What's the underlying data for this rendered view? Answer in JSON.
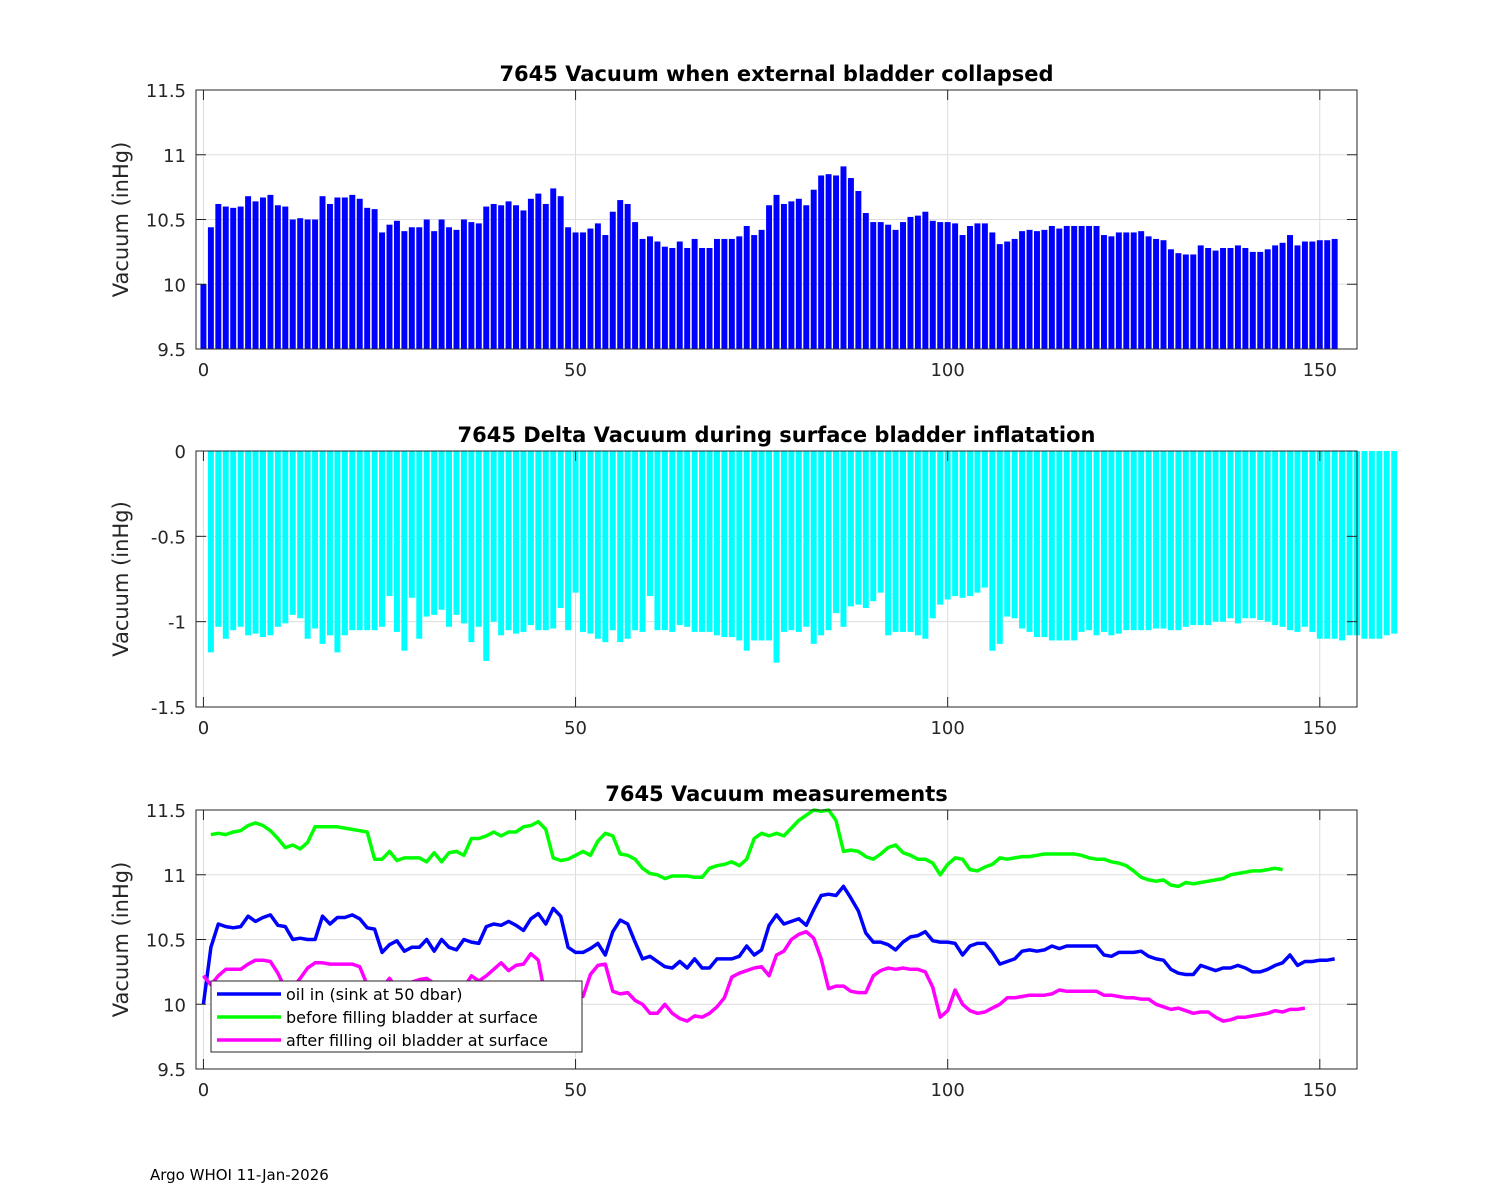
{
  "footer": "Argo WHOI 11-Jan-2026",
  "colors": {
    "bars1": "#0000ff",
    "bars2": "#00ffff",
    "oil_in": "#0000ff",
    "before": "#00ff00",
    "after": "#ff00ff",
    "grid": "#dddddd",
    "axis": "#262626"
  },
  "chart_data": [
    {
      "type": "bar",
      "title": "7645 Vacuum when external bladder collapsed",
      "ylabel": "Vacuum (inHg)",
      "xlabel": "",
      "xlim": [
        -1,
        155
      ],
      "ylim": [
        9.5,
        11.5
      ],
      "xticks": [
        "0",
        "50",
        "100",
        "150"
      ],
      "xtick_values": [
        0,
        50,
        100,
        150
      ],
      "yticks": [
        "9.5",
        "10",
        "10.5",
        "11",
        "11.5"
      ],
      "ytick_values": [
        9.5,
        10,
        10.5,
        11,
        11.5
      ],
      "grid": true,
      "x_start": 0,
      "values": [
        10.0,
        10.44,
        10.62,
        10.6,
        10.59,
        10.6,
        10.68,
        10.64,
        10.67,
        10.69,
        10.61,
        10.6,
        10.5,
        10.51,
        10.5,
        10.5,
        10.68,
        10.62,
        10.67,
        10.67,
        10.69,
        10.66,
        10.59,
        10.58,
        10.4,
        10.46,
        10.49,
        10.41,
        10.44,
        10.44,
        10.5,
        10.41,
        10.5,
        10.44,
        10.42,
        10.5,
        10.48,
        10.47,
        10.6,
        10.62,
        10.61,
        10.64,
        10.61,
        10.57,
        10.66,
        10.7,
        10.62,
        10.74,
        10.68,
        10.44,
        10.4,
        10.4,
        10.43,
        10.47,
        10.38,
        10.56,
        10.65,
        10.62,
        10.48,
        10.35,
        10.37,
        10.33,
        10.29,
        10.28,
        10.33,
        10.28,
        10.35,
        10.28,
        10.28,
        10.35,
        10.35,
        10.35,
        10.37,
        10.45,
        10.38,
        10.42,
        10.61,
        10.69,
        10.62,
        10.64,
        10.66,
        10.61,
        10.73,
        10.84,
        10.85,
        10.84,
        10.91,
        10.82,
        10.72,
        10.55,
        10.48,
        10.48,
        10.46,
        10.42,
        10.48,
        10.52,
        10.53,
        10.56,
        10.49,
        10.48,
        10.48,
        10.47,
        10.38,
        10.45,
        10.47,
        10.47,
        10.4,
        10.31,
        10.33,
        10.35,
        10.41,
        10.42,
        10.41,
        10.42,
        10.45,
        10.43,
        10.45,
        10.45,
        10.45,
        10.45,
        10.45,
        10.38,
        10.37,
        10.4,
        10.4,
        10.4,
        10.41,
        10.37,
        10.35,
        10.34,
        10.27,
        10.24,
        10.23,
        10.23,
        10.3,
        10.28,
        10.26,
        10.28,
        10.28,
        10.3,
        10.28,
        10.25,
        10.25,
        10.27,
        10.3,
        10.32,
        10.38,
        10.3,
        10.33,
        10.33,
        10.34,
        10.34,
        10.35
      ]
    },
    {
      "type": "bar",
      "title": "7645 Delta Vacuum during surface bladder inflatation",
      "ylabel": "Vacuum (inHg)",
      "xlabel": "",
      "xlim": [
        -1,
        155
      ],
      "ylim": [
        -1.5,
        0
      ],
      "xticks": [
        "0",
        "50",
        "100",
        "150"
      ],
      "xtick_values": [
        0,
        50,
        100,
        150
      ],
      "yticks": [
        "-1.5",
        "-1",
        "-0.5",
        "0"
      ],
      "ytick_values": [
        -1.5,
        -1,
        -0.5,
        0
      ],
      "grid": true,
      "x_start": 0,
      "values": [
        0,
        -1.18,
        -1.03,
        -1.1,
        -1.05,
        -1.03,
        -1.08,
        -1.07,
        -1.09,
        -1.08,
        -1.03,
        -1.01,
        -0.96,
        -0.98,
        -1.1,
        -1.04,
        -1.13,
        -1.08,
        -1.18,
        -1.08,
        -1.05,
        -1.05,
        -1.05,
        -1.05,
        -1.03,
        -0.85,
        -1.06,
        -1.17,
        -0.86,
        -1.1,
        -0.97,
        -0.96,
        -0.93,
        -1.03,
        -0.96,
        -1.01,
        -1.12,
        -1.03,
        -1.23,
        -1.0,
        -1.08,
        -1.05,
        -1.07,
        -1.06,
        -1.02,
        -1.05,
        -1.05,
        -1.04,
        -0.92,
        -1.05,
        -0.83,
        -1.06,
        -1.07,
        -1.1,
        -1.12,
        -1.05,
        -1.12,
        -1.1,
        -1.05,
        -1.06,
        -0.85,
        -1.05,
        -1.05,
        -1.06,
        -1.02,
        -1.03,
        -1.06,
        -1.06,
        -1.06,
        -1.08,
        -1.09,
        -1.09,
        -1.11,
        -1.17,
        -1.11,
        -1.11,
        -1.11,
        -1.24,
        -1.06,
        -1.05,
        -1.06,
        -1.03,
        -1.13,
        -1.08,
        -1.05,
        -0.95,
        -1.03,
        -0.91,
        -0.9,
        -0.92,
        -0.88,
        -0.83,
        -1.08,
        -1.06,
        -1.06,
        -1.06,
        -1.08,
        -1.1,
        -0.98,
        -0.9,
        -0.87,
        -0.85,
        -0.86,
        -0.85,
        -0.83,
        -0.8,
        -1.17,
        -1.13,
        -0.97,
        -0.98,
        -1.04,
        -1.06,
        -1.09,
        -1.09,
        -1.11,
        -1.11,
        -1.11,
        -1.11,
        -1.06,
        -1.05,
        -1.08,
        -1.06,
        -1.08,
        -1.07,
        -1.05,
        -1.05,
        -1.05,
        -1.05,
        -1.04,
        -1.04,
        -1.05,
        -1.05,
        -1.03,
        -1.02,
        -1.02,
        -1.02,
        -1.0,
        -1.0,
        -0.98,
        -1.01,
        -0.98,
        -0.98,
        -0.99,
        -1.0,
        -1.02,
        -1.03,
        -1.05,
        -1.06,
        -1.03,
        -1.06,
        -1.1,
        -1.1,
        -1.1,
        -1.11,
        -1.08,
        -1.08,
        -1.1,
        -1.1,
        -1.1,
        -1.08,
        -1.07
      ]
    },
    {
      "type": "line",
      "title": "7645 Vacuum measurements",
      "ylabel": "Vacuum (inHg)",
      "xlabel": "",
      "xlim": [
        -1,
        155
      ],
      "ylim": [
        9.5,
        11.5
      ],
      "xticks": [
        "0",
        "50",
        "100",
        "150"
      ],
      "xtick_values": [
        0,
        50,
        100,
        150
      ],
      "yticks": [
        "9.5",
        "10",
        "10.5",
        "11",
        "11.5"
      ],
      "ytick_values": [
        9.5,
        10,
        10.5,
        11,
        11.5
      ],
      "grid": true,
      "legend_position": "bottom-left",
      "series": [
        {
          "name": "oil in (sink at 50 dbar)",
          "color_key": "oil_in",
          "x_start": 0,
          "values": [
            10.0,
            10.44,
            10.62,
            10.6,
            10.59,
            10.6,
            10.68,
            10.64,
            10.67,
            10.69,
            10.61,
            10.6,
            10.5,
            10.51,
            10.5,
            10.5,
            10.68,
            10.62,
            10.67,
            10.67,
            10.69,
            10.66,
            10.59,
            10.58,
            10.4,
            10.46,
            10.49,
            10.41,
            10.44,
            10.44,
            10.5,
            10.41,
            10.5,
            10.44,
            10.42,
            10.5,
            10.48,
            10.47,
            10.6,
            10.62,
            10.61,
            10.64,
            10.61,
            10.57,
            10.66,
            10.7,
            10.62,
            10.74,
            10.68,
            10.44,
            10.4,
            10.4,
            10.43,
            10.47,
            10.38,
            10.56,
            10.65,
            10.62,
            10.48,
            10.35,
            10.37,
            10.33,
            10.29,
            10.28,
            10.33,
            10.28,
            10.35,
            10.28,
            10.28,
            10.35,
            10.35,
            10.35,
            10.37,
            10.45,
            10.38,
            10.42,
            10.61,
            10.69,
            10.62,
            10.64,
            10.66,
            10.61,
            10.73,
            10.84,
            10.85,
            10.84,
            10.91,
            10.82,
            10.72,
            10.55,
            10.48,
            10.48,
            10.46,
            10.42,
            10.48,
            10.52,
            10.53,
            10.56,
            10.49,
            10.48,
            10.48,
            10.47,
            10.38,
            10.45,
            10.47,
            10.47,
            10.4,
            10.31,
            10.33,
            10.35,
            10.41,
            10.42,
            10.41,
            10.42,
            10.45,
            10.43,
            10.45,
            10.45,
            10.45,
            10.45,
            10.45,
            10.38,
            10.37,
            10.4,
            10.4,
            10.4,
            10.41,
            10.37,
            10.35,
            10.34,
            10.27,
            10.24,
            10.23,
            10.23,
            10.3,
            10.28,
            10.26,
            10.28,
            10.28,
            10.3,
            10.28,
            10.25,
            10.25,
            10.27,
            10.3,
            10.32,
            10.38,
            10.3,
            10.33,
            10.33,
            10.34,
            10.34,
            10.35
          ]
        },
        {
          "name": "before filling bladder at surface",
          "color_key": "before",
          "x_start": 1,
          "values": [
            11.31,
            11.32,
            11.31,
            11.33,
            11.34,
            11.38,
            11.4,
            11.38,
            11.34,
            11.28,
            11.21,
            11.23,
            11.2,
            11.25,
            11.37,
            11.37,
            11.37,
            11.37,
            11.36,
            11.35,
            11.34,
            11.33,
            11.12,
            11.12,
            11.18,
            11.11,
            11.13,
            11.13,
            11.13,
            11.1,
            11.17,
            11.1,
            11.17,
            11.18,
            11.15,
            11.28,
            11.28,
            11.3,
            11.33,
            11.3,
            11.33,
            11.33,
            11.37,
            11.38,
            11.41,
            11.35,
            11.13,
            11.11,
            11.12,
            11.15,
            11.18,
            11.15,
            11.26,
            11.32,
            11.3,
            11.16,
            11.15,
            11.12,
            11.05,
            11.01,
            11.0,
            10.97,
            10.99,
            10.99,
            10.99,
            10.98,
            10.98,
            11.05,
            11.07,
            11.08,
            11.1,
            11.07,
            11.12,
            11.28,
            11.32,
            11.3,
            11.32,
            11.3,
            11.36,
            11.42,
            11.46,
            11.5,
            11.49,
            11.5,
            11.42,
            11.18,
            11.19,
            11.18,
            11.14,
            11.12,
            11.16,
            11.21,
            11.23,
            11.17,
            11.15,
            11.12,
            11.12,
            11.09,
            11.0,
            11.08,
            11.13,
            11.12,
            11.04,
            11.03,
            11.06,
            11.08,
            11.13,
            11.12,
            11.13,
            11.14,
            11.14,
            11.15,
            11.16,
            11.16,
            11.16,
            11.16,
            11.16,
            11.15,
            11.13,
            11.12,
            11.12,
            11.1,
            11.09,
            11.07,
            11.03,
            10.98,
            10.96,
            10.95,
            10.96,
            10.92,
            10.91,
            10.94,
            10.93,
            10.94,
            10.95,
            10.96,
            10.97,
            11.0,
            11.01,
            11.02,
            11.03,
            11.03,
            11.04,
            11.05,
            11.04
          ]
        },
        {
          "name": "after filling oil bladder at surface",
          "color_key": "after",
          "x_start": 0,
          "values": [
            10.22,
            10.15,
            10.22,
            10.27,
            10.27,
            10.27,
            10.31,
            10.34,
            10.34,
            10.33,
            10.24,
            10.12,
            10.13,
            10.2,
            10.28,
            10.32,
            10.32,
            10.31,
            10.31,
            10.31,
            10.31,
            10.29,
            10.15,
            10.14,
            10.13,
            10.2,
            10.12,
            10.16,
            10.17,
            10.19,
            10.2,
            10.16,
            10.15,
            10.08,
            10.1,
            10.13,
            10.22,
            10.18,
            10.22,
            10.27,
            10.32,
            10.26,
            10.3,
            10.31,
            10.39,
            10.34,
            10.04,
            10.02,
            10.01,
            10.03,
            10.07,
            10.06,
            10.23,
            10.3,
            10.31,
            10.1,
            10.08,
            10.09,
            10.03,
            10.0,
            9.93,
            9.93,
            10.0,
            9.93,
            9.89,
            9.87,
            9.91,
            9.9,
            9.93,
            9.98,
            10.05,
            10.21,
            10.24,
            10.26,
            10.28,
            10.29,
            10.22,
            10.38,
            10.41,
            10.5,
            10.54,
            10.56,
            10.51,
            10.35,
            10.12,
            10.14,
            10.14,
            10.1,
            10.09,
            10.09,
            10.22,
            10.26,
            10.28,
            10.27,
            10.28,
            10.27,
            10.27,
            10.25,
            10.13,
            9.9,
            9.95,
            10.11,
            10.0,
            9.95,
            9.93,
            9.94,
            9.97,
            10.0,
            10.05,
            10.05,
            10.06,
            10.07,
            10.07,
            10.07,
            10.08,
            10.11,
            10.1,
            10.1,
            10.1,
            10.1,
            10.1,
            10.07,
            10.07,
            10.06,
            10.05,
            10.05,
            10.04,
            10.04,
            10.0,
            9.98,
            9.96,
            9.97,
            9.95,
            9.93,
            9.94,
            9.94,
            9.9,
            9.87,
            9.88,
            9.9,
            9.9,
            9.91,
            9.92,
            9.93,
            9.95,
            9.94,
            9.96,
            9.96,
            9.97
          ]
        }
      ]
    }
  ]
}
